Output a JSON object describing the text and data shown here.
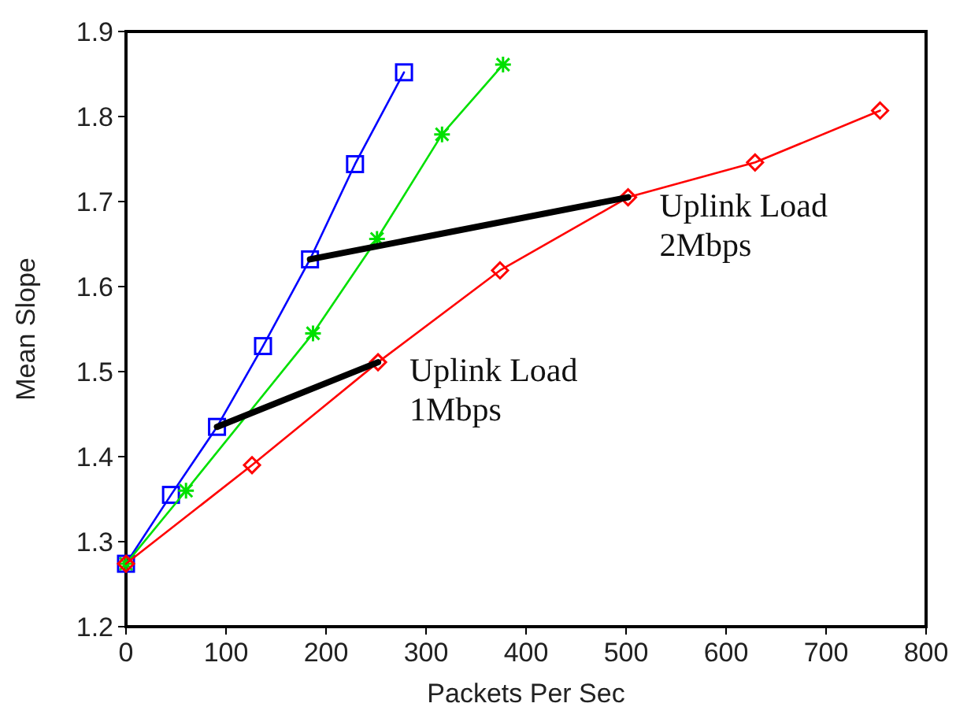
{
  "chart_data": {
    "type": "line",
    "xlabel": "Packets Per Sec",
    "ylabel": "Mean Slope",
    "xlim": [
      0,
      800
    ],
    "xticks": [
      0,
      100,
      200,
      300,
      400,
      500,
      600,
      700,
      800
    ],
    "ylim": [
      1.2,
      1.9
    ],
    "yticks": [
      1.2,
      1.3,
      1.4,
      1.5,
      1.6,
      1.7,
      1.8,
      1.9
    ],
    "grid": false,
    "series": [
      {
        "color": "#0000ff",
        "marker": "square",
        "x": [
          0,
          45,
          91,
          137,
          184,
          229,
          278
        ],
        "values": [
          1.274,
          1.355,
          1.435,
          1.53,
          1.632,
          1.744,
          1.852
        ]
      },
      {
        "color": "#00e000",
        "marker": "cross",
        "x": [
          0,
          60,
          187,
          251,
          316,
          377
        ],
        "values": [
          1.274,
          1.36,
          1.545,
          1.656,
          1.779,
          1.861
        ]
      },
      {
        "color": "#ff0000",
        "marker": "diamond",
        "x": [
          0,
          126,
          252,
          374,
          502,
          629,
          754
        ],
        "values": [
          1.274,
          1.39,
          1.511,
          1.619,
          1.705,
          1.746,
          1.807
        ]
      },
      {
        "color": "#000000",
        "marker": "none",
        "x": [
          91,
          252
        ],
        "values": [
          1.435,
          1.511
        ]
      },
      {
        "color": "#000000",
        "marker": "none",
        "x": [
          184,
          502
        ],
        "values": [
          1.632,
          1.705
        ]
      }
    ],
    "annotations": [
      {
        "text": "Uplink Load\n1Mbps",
        "x": 252,
        "y": 1.511
      },
      {
        "text": "Uplink Load\n2Mbps",
        "x": 502,
        "y": 1.705
      }
    ]
  }
}
